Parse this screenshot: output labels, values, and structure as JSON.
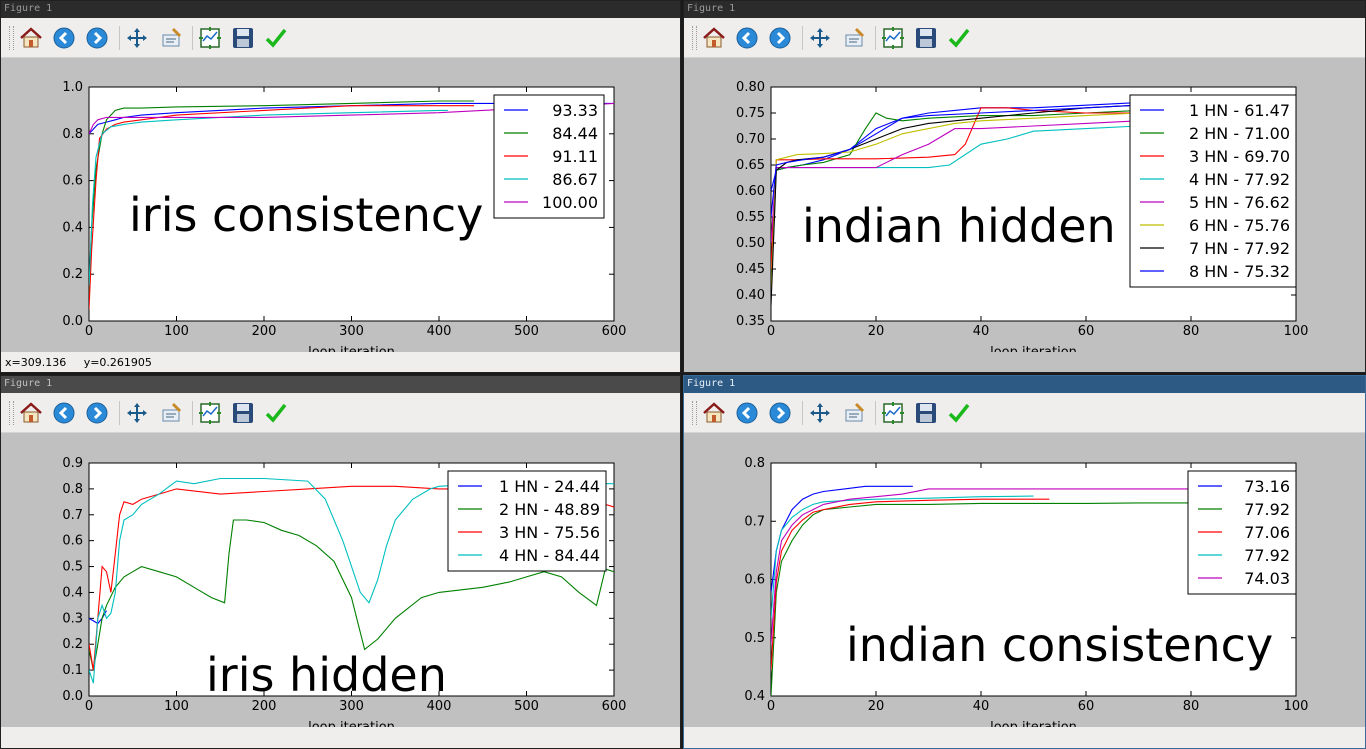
{
  "window_title": "Figure 1",
  "toolbar": {
    "home": "home-icon",
    "back": "back-arrow-icon",
    "forward": "forward-arrow-icon",
    "pan": "pan-icon",
    "zoom": "zoom-icon",
    "subplots": "subplots-icon",
    "save": "save-icon",
    "edit": "edit-check-icon"
  },
  "status": {
    "coords": "x=309.136     y=0.261905"
  },
  "colors": {
    "b": "#0000ff",
    "g": "#008000",
    "r": "#ff0000",
    "c": "#00bfbf",
    "m": "#bf00bf",
    "y": "#bfbf00",
    "k": "#000000"
  },
  "chart_data": [
    {
      "type": "line",
      "annotation": "iris consistency",
      "xlabel": "loop iteration",
      "xlim": [
        0,
        600
      ],
      "ylim": [
        0.0,
        1.0
      ],
      "xticks": [
        "0",
        "100",
        "200",
        "300",
        "400",
        "500",
        "600"
      ],
      "yticks": [
        "0.0",
        "0.2",
        "0.4",
        "0.6",
        "0.8",
        "1.0"
      ],
      "legend_position": "upper right",
      "series": [
        {
          "name": "93.33",
          "color": "#0000ff",
          "x": [
            0,
            5,
            10,
            20,
            30,
            40,
            60,
            100,
            200,
            300,
            400,
            500,
            600
          ],
          "y": [
            0.8,
            0.82,
            0.84,
            0.85,
            0.86,
            0.87,
            0.88,
            0.89,
            0.91,
            0.92,
            0.93,
            0.93,
            0.93
          ]
        },
        {
          "name": "84.44",
          "color": "#008000",
          "x": [
            0,
            3,
            8,
            15,
            20,
            30,
            40,
            60,
            100,
            200,
            300,
            400,
            440
          ],
          "y": [
            0.1,
            0.4,
            0.65,
            0.8,
            0.86,
            0.9,
            0.91,
            0.91,
            0.915,
            0.92,
            0.93,
            0.94,
            0.94
          ]
        },
        {
          "name": "91.11",
          "color": "#ff0000",
          "x": [
            0,
            3,
            8,
            12,
            20,
            30,
            40,
            60,
            100,
            200,
            300,
            400,
            440
          ],
          "y": [
            0.05,
            0.3,
            0.6,
            0.78,
            0.82,
            0.84,
            0.85,
            0.86,
            0.88,
            0.9,
            0.92,
            0.92,
            0.92
          ]
        },
        {
          "name": "86.67",
          "color": "#00bfbf",
          "x": [
            0,
            4,
            8,
            15,
            25,
            40,
            60,
            100,
            200,
            300,
            400,
            410
          ],
          "y": [
            0.15,
            0.5,
            0.7,
            0.8,
            0.83,
            0.84,
            0.85,
            0.86,
            0.88,
            0.89,
            0.9,
            0.9
          ]
        },
        {
          "name": "100.00",
          "color": "#bf00bf",
          "x": [
            0,
            5,
            10,
            20,
            40,
            60,
            100,
            200,
            300,
            400,
            500,
            600
          ],
          "y": [
            0.8,
            0.84,
            0.86,
            0.87,
            0.87,
            0.87,
            0.87,
            0.87,
            0.88,
            0.89,
            0.91,
            0.93
          ]
        }
      ]
    },
    {
      "type": "line",
      "annotation": "indian hidden",
      "xlabel": "loop iteration",
      "xlim": [
        0,
        100
      ],
      "ylim": [
        0.35,
        0.8
      ],
      "xticks": [
        "0",
        "20",
        "40",
        "60",
        "80",
        "100"
      ],
      "yticks": [
        "0.35",
        "0.40",
        "0.45",
        "0.50",
        "0.55",
        "0.60",
        "0.65",
        "0.70",
        "0.75",
        "0.80"
      ],
      "legend_position": "upper right",
      "series": [
        {
          "name": "1 HN - 61.47",
          "color": "#0000ff",
          "x": [
            0,
            1,
            3,
            6,
            10,
            15,
            20,
            25,
            30,
            35,
            40,
            50,
            60,
            70,
            72
          ],
          "y": [
            0.6,
            0.64,
            0.645,
            0.65,
            0.66,
            0.68,
            0.72,
            0.74,
            0.75,
            0.755,
            0.76,
            0.76,
            0.765,
            0.77,
            0.77
          ]
        },
        {
          "name": "2 HN - 71.00",
          "color": "#008000",
          "x": [
            0,
            1,
            3,
            6,
            10,
            15,
            18,
            20,
            22,
            25,
            30,
            40,
            50,
            60,
            70,
            80,
            100
          ],
          "y": [
            0.5,
            0.64,
            0.645,
            0.65,
            0.655,
            0.67,
            0.72,
            0.75,
            0.74,
            0.735,
            0.74,
            0.745,
            0.745,
            0.75,
            0.755,
            0.755,
            0.755
          ]
        },
        {
          "name": "3 HN - 69.70",
          "color": "#ff0000",
          "x": [
            0,
            1,
            5,
            10,
            20,
            30,
            35,
            37,
            40,
            45,
            50,
            60,
            70,
            80
          ],
          "y": [
            0.45,
            0.66,
            0.66,
            0.662,
            0.662,
            0.665,
            0.67,
            0.69,
            0.76,
            0.76,
            0.755,
            0.75,
            0.75,
            0.75
          ]
        },
        {
          "name": "4 HN - 77.92",
          "color": "#00bfbf",
          "x": [
            0,
            1,
            5,
            10,
            20,
            30,
            34,
            40,
            45,
            50,
            60,
            70,
            80,
            100
          ],
          "y": [
            0.4,
            0.645,
            0.645,
            0.645,
            0.645,
            0.645,
            0.65,
            0.69,
            0.7,
            0.715,
            0.72,
            0.725,
            0.73,
            0.75
          ]
        },
        {
          "name": "5 HN - 76.62",
          "color": "#bf00bf",
          "x": [
            0,
            1,
            5,
            10,
            20,
            25,
            30,
            35,
            40,
            50,
            60,
            70,
            80
          ],
          "y": [
            0.5,
            0.645,
            0.645,
            0.645,
            0.645,
            0.67,
            0.69,
            0.72,
            0.72,
            0.725,
            0.73,
            0.735,
            0.74
          ]
        },
        {
          "name": "6 HN - 75.76",
          "color": "#bfbf00",
          "x": [
            0,
            1,
            3,
            5,
            10,
            15,
            20,
            25,
            30,
            35,
            40,
            50,
            60,
            70,
            80
          ],
          "y": [
            0.4,
            0.66,
            0.665,
            0.67,
            0.672,
            0.675,
            0.69,
            0.71,
            0.72,
            0.73,
            0.735,
            0.74,
            0.745,
            0.75,
            0.755
          ]
        },
        {
          "name": "7 HN - 77.92",
          "color": "#000000",
          "x": [
            0,
            1,
            3,
            5,
            10,
            15,
            20,
            25,
            30,
            35,
            40,
            50,
            60,
            70,
            80,
            90
          ],
          "y": [
            0.38,
            0.64,
            0.655,
            0.66,
            0.665,
            0.68,
            0.7,
            0.72,
            0.73,
            0.735,
            0.74,
            0.75,
            0.76,
            0.765,
            0.775,
            0.775
          ]
        },
        {
          "name": "8 HN - 75.32",
          "color": "#0000ff",
          "x": [
            0,
            1,
            3,
            6,
            10,
            15,
            20,
            25,
            30,
            40,
            50,
            60,
            70,
            80
          ],
          "y": [
            0.55,
            0.65,
            0.655,
            0.66,
            0.665,
            0.68,
            0.71,
            0.74,
            0.745,
            0.75,
            0.755,
            0.76,
            0.765,
            0.77
          ]
        }
      ]
    },
    {
      "type": "line",
      "annotation": "iris hidden",
      "xlabel": "loop iteration",
      "xlim": [
        0,
        600
      ],
      "ylim": [
        0.0,
        0.9
      ],
      "xticks": [
        "0",
        "100",
        "200",
        "300",
        "400",
        "500",
        "600"
      ],
      "yticks": [
        "0.0",
        "0.1",
        "0.2",
        "0.3",
        "0.4",
        "0.5",
        "0.6",
        "0.7",
        "0.8",
        "0.9"
      ],
      "legend_position": "upper right",
      "series": [
        {
          "name": "1 HN - 24.44",
          "color": "#0000ff",
          "x": [
            0,
            5,
            10,
            15,
            20
          ],
          "y": [
            0.3,
            0.29,
            0.28,
            0.3,
            0.33
          ]
        },
        {
          "name": "2 HN - 48.89",
          "color": "#008000",
          "x": [
            0,
            5,
            10,
            15,
            20,
            30,
            40,
            50,
            60,
            80,
            100,
            120,
            140,
            155,
            160,
            165,
            180,
            200,
            220,
            240,
            260,
            280,
            300,
            315,
            330,
            350,
            380,
            400,
            450,
            480,
            500,
            520,
            540,
            560,
            580,
            590,
            600
          ],
          "y": [
            0.18,
            0.1,
            0.2,
            0.3,
            0.35,
            0.42,
            0.46,
            0.48,
            0.5,
            0.48,
            0.46,
            0.42,
            0.38,
            0.36,
            0.55,
            0.68,
            0.68,
            0.67,
            0.64,
            0.62,
            0.58,
            0.52,
            0.38,
            0.18,
            0.22,
            0.3,
            0.38,
            0.4,
            0.42,
            0.44,
            0.46,
            0.48,
            0.46,
            0.4,
            0.35,
            0.49,
            0.48
          ]
        },
        {
          "name": "3 HN - 75.56",
          "color": "#ff0000",
          "x": [
            0,
            5,
            10,
            15,
            20,
            25,
            30,
            35,
            40,
            50,
            60,
            80,
            100,
            150,
            200,
            250,
            300,
            350,
            400,
            450,
            500,
            550,
            580,
            600
          ],
          "y": [
            0.2,
            0.1,
            0.3,
            0.5,
            0.48,
            0.4,
            0.55,
            0.7,
            0.75,
            0.74,
            0.76,
            0.78,
            0.8,
            0.78,
            0.79,
            0.8,
            0.81,
            0.81,
            0.8,
            0.8,
            0.79,
            0.78,
            0.75,
            0.73
          ]
        },
        {
          "name": "4 HN - 84.44",
          "color": "#00bfbf",
          "x": [
            0,
            5,
            10,
            15,
            20,
            25,
            30,
            35,
            40,
            50,
            60,
            80,
            100,
            120,
            150,
            200,
            250,
            270,
            290,
            310,
            320,
            330,
            340,
            350,
            370,
            390,
            400,
            450,
            500,
            550,
            600
          ],
          "y": [
            0.1,
            0.05,
            0.3,
            0.35,
            0.3,
            0.32,
            0.4,
            0.6,
            0.68,
            0.7,
            0.74,
            0.78,
            0.83,
            0.82,
            0.84,
            0.84,
            0.83,
            0.76,
            0.6,
            0.4,
            0.36,
            0.45,
            0.58,
            0.68,
            0.76,
            0.8,
            0.81,
            0.82,
            0.82,
            0.82,
            0.82
          ]
        }
      ]
    },
    {
      "type": "line",
      "annotation": "indian consistency",
      "xlabel": "loop iteration",
      "xlim": [
        0,
        100
      ],
      "ylim": [
        0.4,
        0.85
      ],
      "xticks": [
        "0",
        "20",
        "40",
        "60",
        "80",
        "100"
      ],
      "yticks": [
        "0.4",
        "0.5",
        "0.6",
        "0.7",
        "0.8"
      ],
      "legend_position": "upper right",
      "series": [
        {
          "name": "73.16",
          "color": "#0000ff",
          "x": [
            0,
            1,
            2,
            4,
            6,
            8,
            10,
            14,
            18,
            22,
            27
          ],
          "y": [
            0.6,
            0.68,
            0.72,
            0.76,
            0.78,
            0.79,
            0.795,
            0.8,
            0.805,
            0.805,
            0.805
          ]
        },
        {
          "name": "77.92",
          "color": "#008000",
          "x": [
            0,
            1,
            2,
            4,
            6,
            8,
            10,
            15,
            20,
            30,
            40,
            50,
            60,
            70,
            80,
            90,
            100
          ],
          "y": [
            0.4,
            0.6,
            0.66,
            0.7,
            0.73,
            0.75,
            0.76,
            0.765,
            0.77,
            0.77,
            0.772,
            0.772,
            0.772,
            0.773,
            0.773,
            0.774,
            0.774
          ]
        },
        {
          "name": "77.06",
          "color": "#ff0000",
          "x": [
            0,
            1,
            2,
            4,
            6,
            8,
            10,
            15,
            20,
            30,
            40,
            50,
            53
          ],
          "y": [
            0.45,
            0.62,
            0.68,
            0.72,
            0.74,
            0.755,
            0.76,
            0.77,
            0.775,
            0.778,
            0.78,
            0.78,
            0.78
          ]
        },
        {
          "name": "77.92",
          "color": "#00bfbf",
          "x": [
            0,
            1,
            2,
            4,
            6,
            8,
            10,
            15,
            20,
            30,
            40,
            50
          ],
          "y": [
            0.55,
            0.68,
            0.72,
            0.745,
            0.76,
            0.77,
            0.775,
            0.778,
            0.78,
            0.782,
            0.785,
            0.786
          ]
        },
        {
          "name": "74.03",
          "color": "#bf00bf",
          "x": [
            0,
            1,
            2,
            4,
            6,
            8,
            10,
            15,
            20,
            25,
            30,
            40,
            50,
            60,
            70,
            80,
            90,
            100
          ],
          "y": [
            0.5,
            0.64,
            0.7,
            0.73,
            0.75,
            0.76,
            0.77,
            0.78,
            0.785,
            0.79,
            0.8,
            0.8,
            0.8,
            0.8,
            0.8,
            0.8,
            0.8,
            0.8
          ]
        }
      ]
    }
  ]
}
